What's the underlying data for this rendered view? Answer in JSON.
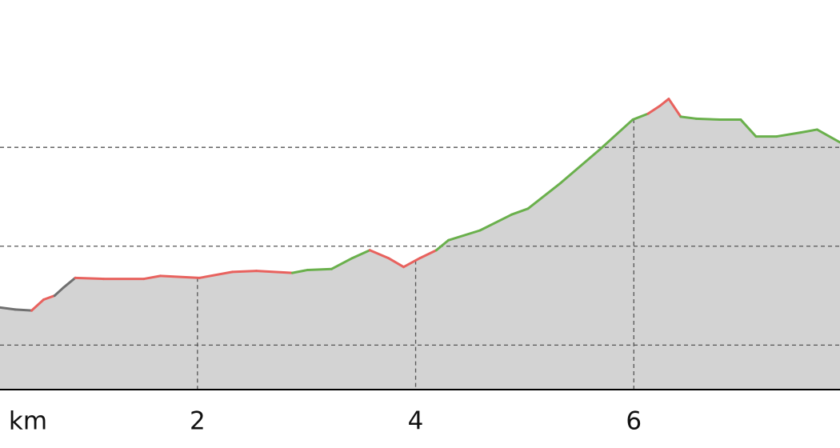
{
  "chart_data": {
    "type": "elevation-profile",
    "xlabel": "km",
    "x": [
      0.19,
      0.33,
      0.48,
      0.59,
      0.69,
      0.77,
      0.88,
      1.14,
      1.51,
      1.66,
      2.02,
      2.32,
      2.54,
      2.87,
      3.01,
      3.23,
      3.42,
      3.58,
      3.75,
      3.89,
      4.04,
      4.19,
      4.3,
      4.59,
      4.88,
      5.03,
      5.33,
      5.69,
      5.99,
      6.13,
      6.24,
      6.32,
      6.43,
      6.57,
      6.79,
      6.98,
      7.12,
      7.31,
      7.53,
      7.68,
      7.89
    ],
    "values": [
      138,
      136,
      135,
      146,
      150,
      158,
      168,
      167,
      167,
      170,
      168,
      174,
      175,
      173,
      176,
      177,
      188,
      196,
      188,
      179,
      188,
      196,
      206,
      216,
      232,
      238,
      264,
      298,
      328,
      334,
      342,
      349,
      331,
      329,
      328,
      328,
      311,
      311,
      315,
      318,
      305
    ],
    "segment_colors": [
      "#707070",
      "#707070",
      "#e8625e",
      "#e8625e",
      "#707070",
      "#707070",
      "#e8625e",
      "#e8625e",
      "#e8625e",
      "#e8625e",
      "#e8625e",
      "#e8625e",
      "#e8625e",
      "#6ab04c",
      "#6ab04c",
      "#6ab04c",
      "#6ab04c",
      "#e8625e",
      "#e8625e",
      "#e8625e",
      "#e8625e",
      "#6ab04c",
      "#6ab04c",
      "#6ab04c",
      "#6ab04c",
      "#6ab04c",
      "#6ab04c",
      "#6ab04c",
      "#6ab04c",
      "#e8625e",
      "#e8625e",
      "#e8625e",
      "#6ab04c",
      "#6ab04c",
      "#6ab04c",
      "#6ab04c",
      "#6ab04c",
      "#6ab04c",
      "#6ab04c",
      "#6ab04c"
    ],
    "fill": "#d3d3d3",
    "xlim": [
      0.19,
      7.89
    ],
    "xticks": [
      2,
      4,
      6
    ],
    "ylim": [
      55,
      449
    ],
    "yticks": [
      100,
      200,
      300
    ],
    "grid": true
  }
}
